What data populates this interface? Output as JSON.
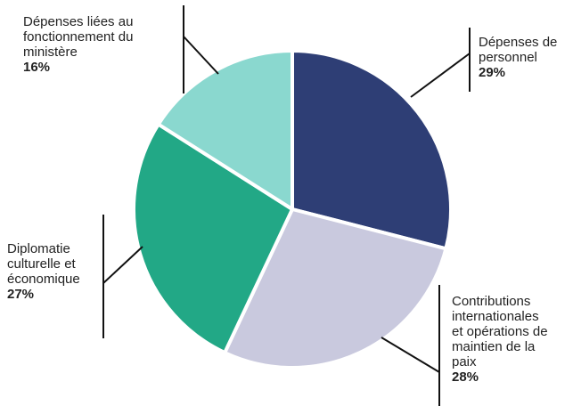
{
  "chart_data": {
    "type": "pie",
    "categories": [
      "Dépenses de personnel",
      "Contributions internationales et opérations de maintien de la paix",
      "Diplomatie culturelle et économique",
      "Dépenses liées au fonctionnement du ministère"
    ],
    "values": [
      29,
      28,
      27,
      16
    ],
    "value_labels": [
      "29%",
      "28%",
      "27%",
      "16%"
    ],
    "label_lines": [
      "Dépenses de\npersonnel",
      "Contributions\ninternationales\net opérations de\nmaintien de la\npaix",
      "Diplomatie\nculturelle et\néconomique",
      "Dépenses liées au\nfonctionnement du\nministère"
    ],
    "colors": [
      "#2e3e75",
      "#c9c9de",
      "#22a886",
      "#8ad8cf"
    ],
    "start_angle": "12 o'clock",
    "direction": "clockwise",
    "legend": "none"
  }
}
